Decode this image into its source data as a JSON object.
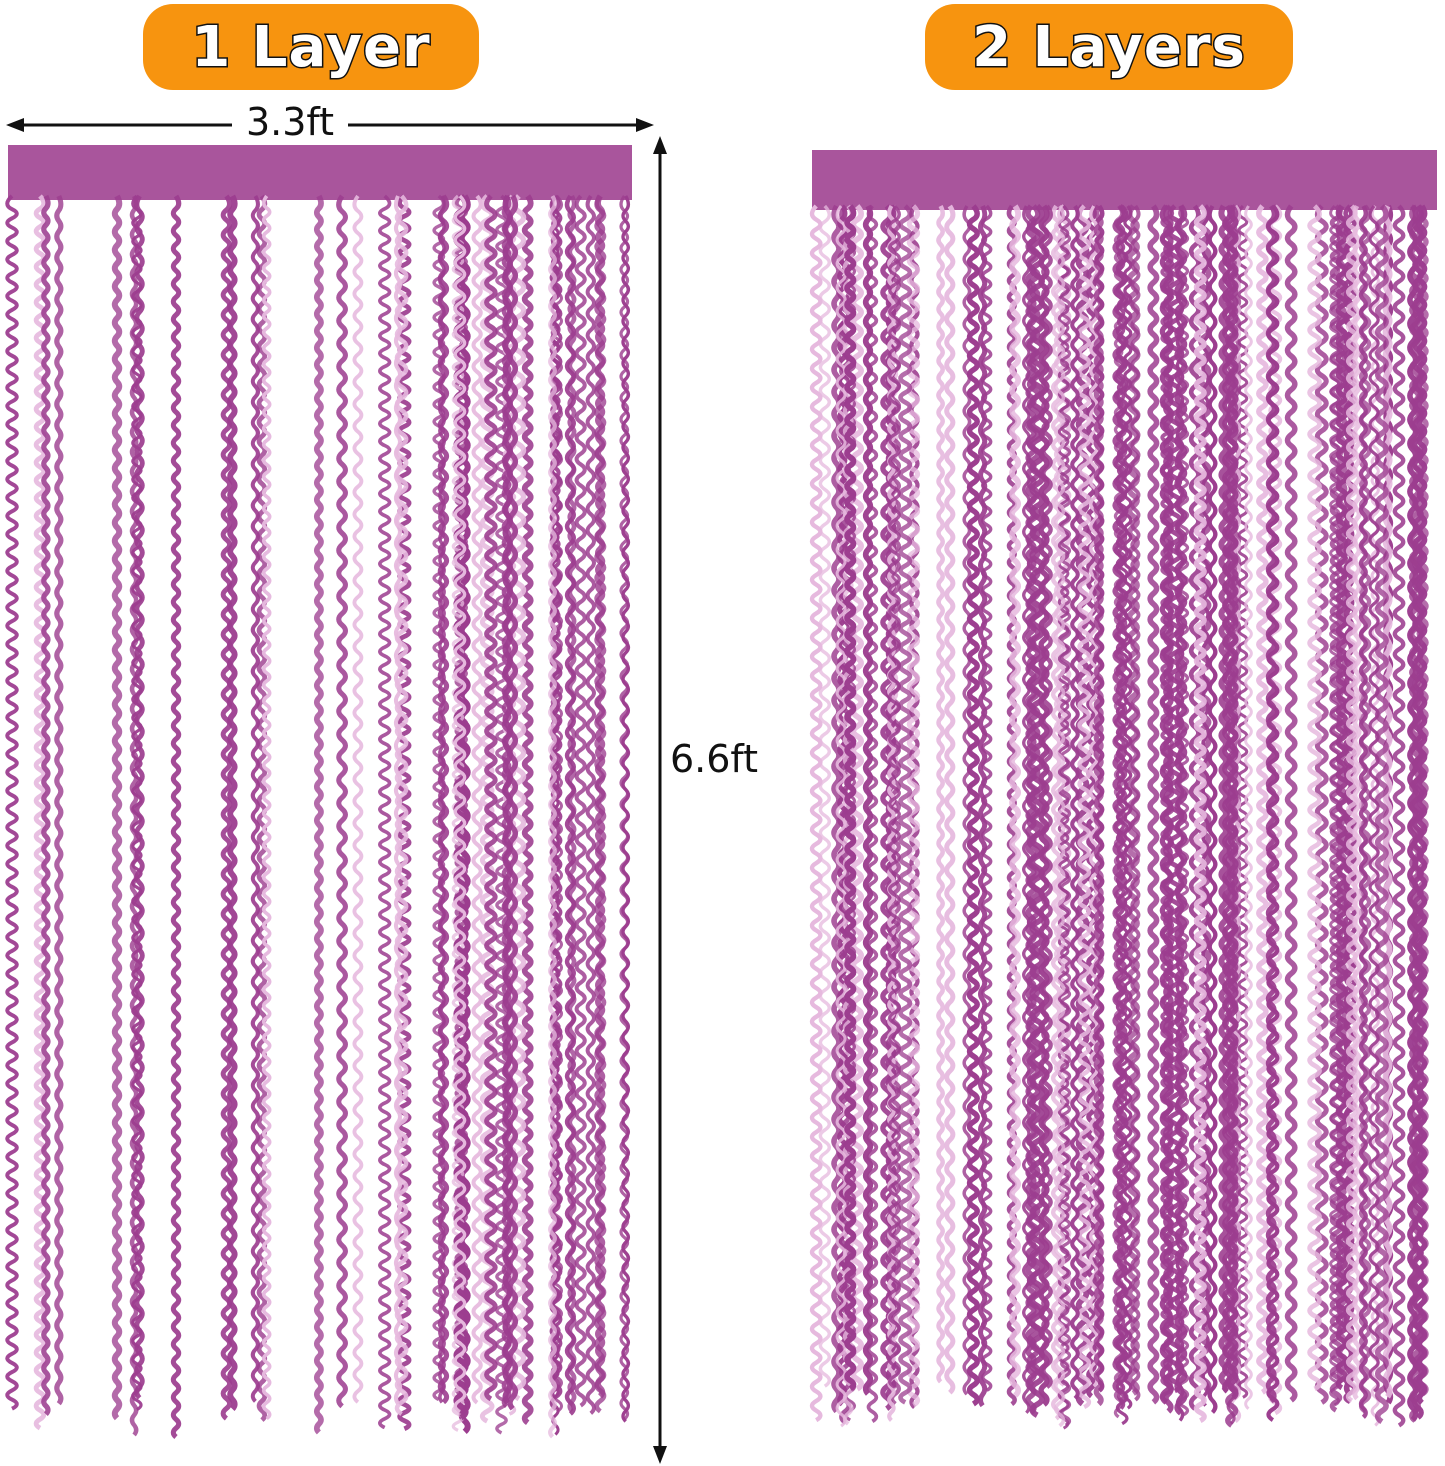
{
  "labels": {
    "one_layer": "1 Layer",
    "two_layers": "2 Layers"
  },
  "dimensions": {
    "width": "3.3ft",
    "height": "6.6ft"
  },
  "colors": {
    "badge": "#f7940f",
    "curtain": "#9c3d8f",
    "curtain_header": "#a9559c",
    "curtain_highlight": "#e6b9de"
  },
  "curtains": [
    {
      "layers": 1
    },
    {
      "layers": 2
    }
  ]
}
